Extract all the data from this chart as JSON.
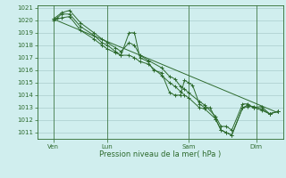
{
  "background_color": "#d0eeee",
  "grid_color": "#aacccc",
  "line_color": "#2d6a2d",
  "xlabel": "Pression niveau de la mer( hPa )",
  "ylim": [
    1010.5,
    1021.2
  ],
  "yticks": [
    1011,
    1012,
    1013,
    1014,
    1015,
    1016,
    1017,
    1018,
    1019,
    1020,
    1021
  ],
  "xlim": [
    -0.1,
    9.0
  ],
  "day_positions": [
    0.5,
    2.5,
    5.5,
    8.0
  ],
  "day_labels": [
    "Ven",
    "Lun",
    "Sam",
    "Dim"
  ],
  "vline_positions": [
    0.5,
    2.5,
    5.5,
    8.0
  ],
  "series1": [
    [
      0.5,
      1020.1
    ],
    [
      0.65,
      1020.2
    ],
    [
      0.8,
      1020.5
    ],
    [
      1.1,
      1020.5
    ],
    [
      1.5,
      1019.5
    ],
    [
      2.0,
      1018.8
    ],
    [
      2.3,
      1018.2
    ],
    [
      2.5,
      1018.0
    ],
    [
      2.8,
      1017.5
    ],
    [
      3.0,
      1017.2
    ],
    [
      3.3,
      1019.0
    ],
    [
      3.5,
      1019.0
    ],
    [
      3.7,
      1017.0
    ],
    [
      4.0,
      1016.7
    ],
    [
      4.2,
      1016.0
    ],
    [
      4.5,
      1015.8
    ],
    [
      4.8,
      1014.2
    ],
    [
      5.0,
      1014.0
    ],
    [
      5.2,
      1014.0
    ],
    [
      5.35,
      1015.2
    ],
    [
      5.5,
      1015.0
    ],
    [
      5.65,
      1014.8
    ],
    [
      5.9,
      1013.3
    ],
    [
      6.1,
      1013.0
    ],
    [
      6.3,
      1013.0
    ],
    [
      6.5,
      1012.1
    ],
    [
      6.7,
      1011.2
    ],
    [
      6.9,
      1011.0
    ],
    [
      7.1,
      1010.8
    ],
    [
      7.5,
      1013.0
    ],
    [
      7.7,
      1013.2
    ],
    [
      7.9,
      1013.0
    ],
    [
      8.2,
      1013.1
    ],
    [
      8.5,
      1012.5
    ],
    [
      8.8,
      1012.7
    ]
  ],
  "series2": [
    [
      0.5,
      1020.1
    ],
    [
      0.8,
      1020.6
    ],
    [
      1.1,
      1020.8
    ],
    [
      1.5,
      1019.8
    ],
    [
      2.0,
      1019.0
    ],
    [
      2.3,
      1018.5
    ],
    [
      2.5,
      1018.2
    ],
    [
      2.8,
      1017.8
    ],
    [
      3.0,
      1017.5
    ],
    [
      3.3,
      1018.2
    ],
    [
      3.5,
      1018.0
    ],
    [
      3.7,
      1017.2
    ],
    [
      4.0,
      1016.8
    ],
    [
      4.5,
      1016.2
    ],
    [
      4.8,
      1015.5
    ],
    [
      5.0,
      1015.3
    ],
    [
      5.2,
      1014.7
    ],
    [
      5.35,
      1014.5
    ],
    [
      5.5,
      1014.2
    ],
    [
      5.9,
      1013.5
    ],
    [
      6.1,
      1013.2
    ],
    [
      6.5,
      1012.3
    ],
    [
      6.7,
      1011.5
    ],
    [
      6.9,
      1011.5
    ],
    [
      7.1,
      1011.2
    ],
    [
      7.5,
      1013.3
    ],
    [
      7.7,
      1013.3
    ],
    [
      7.9,
      1013.0
    ],
    [
      8.2,
      1012.8
    ],
    [
      8.5,
      1012.5
    ],
    [
      8.8,
      1012.7
    ]
  ],
  "series3": [
    [
      0.5,
      1020.0
    ],
    [
      0.8,
      1020.2
    ],
    [
      1.1,
      1020.3
    ],
    [
      1.5,
      1019.2
    ],
    [
      2.0,
      1018.5
    ],
    [
      2.3,
      1018.0
    ],
    [
      2.5,
      1017.7
    ],
    [
      2.8,
      1017.4
    ],
    [
      3.0,
      1017.2
    ],
    [
      3.3,
      1017.2
    ],
    [
      3.5,
      1017.0
    ],
    [
      3.7,
      1016.7
    ],
    [
      4.0,
      1016.5
    ],
    [
      4.5,
      1015.6
    ],
    [
      4.8,
      1015.0
    ],
    [
      5.0,
      1014.7
    ],
    [
      5.2,
      1014.3
    ],
    [
      5.35,
      1014.0
    ],
    [
      5.5,
      1013.8
    ],
    [
      5.9,
      1013.0
    ],
    [
      6.1,
      1012.9
    ],
    [
      6.5,
      1012.1
    ],
    [
      6.7,
      1011.2
    ],
    [
      6.9,
      1011.0
    ],
    [
      7.1,
      1010.8
    ],
    [
      7.5,
      1013.0
    ],
    [
      7.7,
      1013.1
    ],
    [
      7.9,
      1013.1
    ],
    [
      8.2,
      1012.9
    ],
    [
      8.5,
      1012.5
    ],
    [
      8.8,
      1012.7
    ]
  ],
  "series4_straight": [
    [
      0.5,
      1020.1
    ],
    [
      8.8,
      1012.6
    ]
  ]
}
